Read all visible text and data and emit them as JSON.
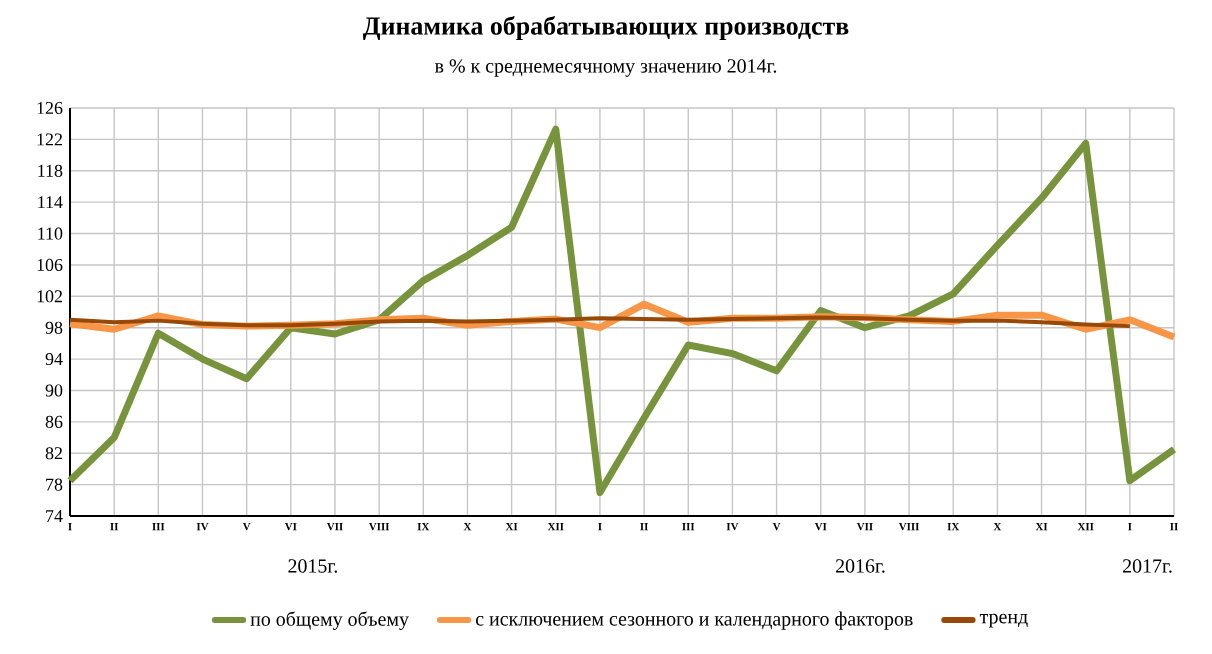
{
  "chart_data": {
    "type": "line",
    "title": "Динамика обрабатывающих производств",
    "subtitle": "в % к среднемесячному значению 2014г.",
    "categories": [
      "I",
      "II",
      "III",
      "IV",
      "V",
      "VI",
      "VII",
      "VIII",
      "IX",
      "X",
      "XI",
      "XII",
      "I",
      "II",
      "III",
      "IV",
      "V",
      "VI",
      "VII",
      "VIII",
      "IX",
      "X",
      "XI",
      "XII",
      "I",
      "II"
    ],
    "annotations": [
      "2015г.",
      "2016г.",
      "2017г."
    ],
    "series": [
      {
        "name": "по общему объему",
        "color": "#77933c",
        "values": [
          78.5,
          84,
          97.3,
          94,
          91.5,
          98,
          97.2,
          99,
          104,
          107.2,
          110.8,
          123.3,
          77,
          86.5,
          95.8,
          94.7,
          92.5,
          100.2,
          98,
          99.5,
          102.3,
          108.5,
          114.5,
          121.5,
          78.5,
          82.5
        ]
      },
      {
        "name": "с исключением  сезонного и календарного факторов",
        "color": "#f79646",
        "values": [
          98.5,
          97.8,
          99.5,
          98.4,
          98.2,
          98.3,
          98.5,
          99,
          99.2,
          98.3,
          98.8,
          99.1,
          98,
          101,
          98.7,
          99.2,
          99.2,
          99.4,
          99.3,
          99,
          98.8,
          99.6,
          99.6,
          97.8,
          99,
          96.8
        ]
      },
      {
        "name": "тренд",
        "color": "#984807",
        "values": [
          99,
          98.7,
          98.9,
          98.5,
          98.3,
          98.3,
          98.5,
          98.8,
          98.9,
          98.8,
          98.9,
          99,
          99.2,
          99.1,
          99,
          99.1,
          99.2,
          99.3,
          99.2,
          99,
          98.9,
          98.9,
          98.7,
          98.4,
          98.2,
          null
        ]
      }
    ],
    "ylim": [
      74,
      126
    ],
    "yticks": [
      74,
      78,
      82,
      86,
      90,
      94,
      98,
      102,
      106,
      110,
      114,
      118,
      122,
      126
    ],
    "grid": true,
    "legend": "bottom",
    "line_style": "solid",
    "marker": "none"
  }
}
